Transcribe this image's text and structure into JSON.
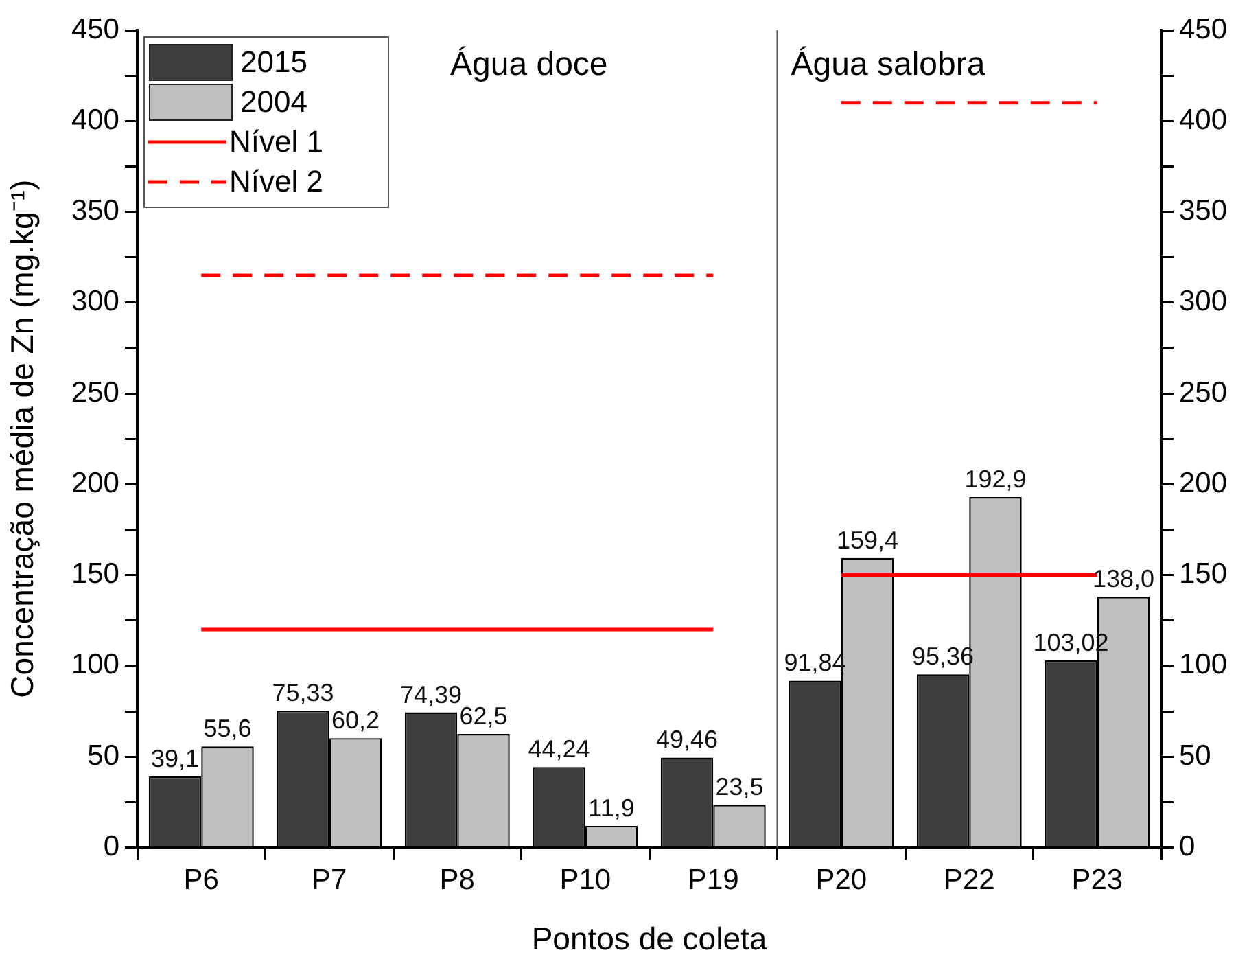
{
  "chart_data": {
    "type": "bar",
    "xlabel": "Pontos de coleta",
    "ylabel": "Concentração média de Zn (mg.kg⁻¹)",
    "categories": [
      "P6",
      "P7",
      "P8",
      "P10",
      "P19",
      "P20",
      "P22",
      "P23"
    ],
    "series": [
      {
        "name": "2015",
        "color": "#3d3d3d",
        "values": [
          39.1,
          75.33,
          74.39,
          44.24,
          49.46,
          91.84,
          95.36,
          103.02
        ],
        "value_labels": [
          "39,1",
          "75,33",
          "74,39",
          "44,24",
          "49,46",
          "91,84",
          "95,36",
          "103,02"
        ]
      },
      {
        "name": "2004",
        "color": "#bfbfbf",
        "values": [
          55.6,
          60.2,
          62.5,
          11.9,
          23.5,
          159.4,
          192.9,
          138.0
        ],
        "value_labels": [
          "55,6",
          "60,2",
          "62,5",
          "11,9",
          "23,5",
          "159,4",
          "192,9",
          "138,0"
        ]
      },
      {
        "name": "Nível 1",
        "type": "line",
        "color": "#ff0000",
        "line_style": "solid",
        "values": [
          120,
          120,
          120,
          120,
          120,
          null,
          null,
          null
        ]
      },
      {
        "name": "Nível 2",
        "type": "line",
        "color": "#ff0000",
        "line_style": "dashed",
        "values": [
          315,
          315,
          315,
          315,
          315,
          null,
          null,
          null
        ]
      },
      {
        "type": "line",
        "color": "#ff0000",
        "line_style": "solid",
        "values": [
          null,
          null,
          null,
          null,
          null,
          150,
          150,
          150
        ]
      },
      {
        "type": "line",
        "color": "#ff0000",
        "line_style": "dashed",
        "values": [
          null,
          null,
          null,
          null,
          null,
          410,
          410,
          410
        ]
      }
    ],
    "annotations": [
      "Água doce",
      "Água salobra"
    ],
    "ylim": [
      0,
      450
    ],
    "yticks": [
      0,
      {
        "value": 25,
        "label": null
      },
      50,
      {
        "value": 75,
        "label": null
      },
      100,
      {
        "value": 125,
        "label": null
      },
      150,
      {
        "value": 175,
        "label": null
      },
      200,
      {
        "value": 225,
        "label": null
      },
      250,
      {
        "value": 275,
        "label": null
      },
      300,
      {
        "value": 325,
        "label": null
      },
      350,
      {
        "value": 375,
        "label": null
      },
      400,
      {
        "value": 425,
        "label": null
      },
      450
    ],
    "y2lim": [
      0,
      450
    ],
    "y2ticks": [
      0,
      {
        "value": 25,
        "label": null
      },
      50,
      {
        "value": 75,
        "label": null
      },
      100,
      {
        "value": 125,
        "label": null
      },
      150,
      {
        "value": 175,
        "label": null
      },
      200,
      {
        "value": 225,
        "label": null
      },
      250,
      {
        "value": 275,
        "label": null
      },
      300,
      {
        "value": 325,
        "label": null
      },
      350,
      {
        "value": 375,
        "label": null
      },
      400,
      {
        "value": 425,
        "label": null
      },
      450
    ],
    "legend": "top left",
    "grid": false
  }
}
